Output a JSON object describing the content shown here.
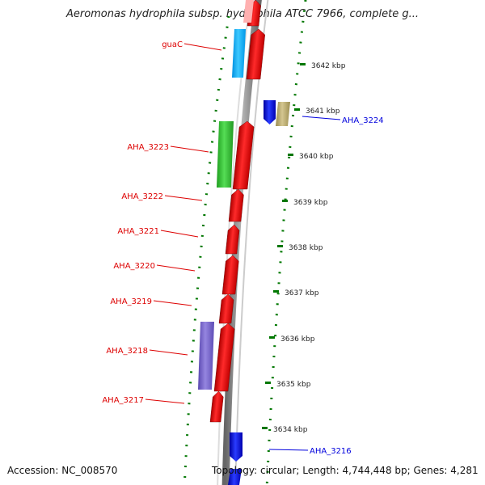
{
  "title": "Aeromonas hydrophila subsp. hydrophila ATCC 7966, complete g...",
  "accession": "Accession: NC_008570",
  "topology": "Topology: circular; Length: 4,744,448 bp; Genes: 4,281",
  "colors": {
    "forward_cds": "#ff0000",
    "reverse_cds": "#0000ff",
    "gene_cyan": "#00b4ff",
    "gene_green": "#33cc33",
    "gene_purple": "#7a66cc",
    "gene_tan": "#b8a96a",
    "tick": "#007700",
    "backbone": "#888888"
  },
  "ticks": [
    {
      "label": "3642 kbp"
    },
    {
      "label": "3641 kbp"
    },
    {
      "label": "3640 kbp"
    },
    {
      "label": "3639 kbp"
    },
    {
      "label": "3638 kbp"
    },
    {
      "label": "3637 kbp"
    },
    {
      "label": "3636 kbp"
    },
    {
      "label": "3635 kbp"
    },
    {
      "label": "3634 kbp"
    }
  ],
  "gene_labels_left": [
    {
      "label": "guaC"
    },
    {
      "label": "AHA_3223"
    },
    {
      "label": "AHA_3222"
    },
    {
      "label": "AHA_3221"
    },
    {
      "label": "AHA_3220"
    },
    {
      "label": "AHA_3219"
    },
    {
      "label": "AHA_3218"
    },
    {
      "label": "AHA_3217"
    }
  ],
  "gene_labels_right": [
    {
      "label": "AHA_3224"
    },
    {
      "label": "AHA_3216"
    }
  ]
}
